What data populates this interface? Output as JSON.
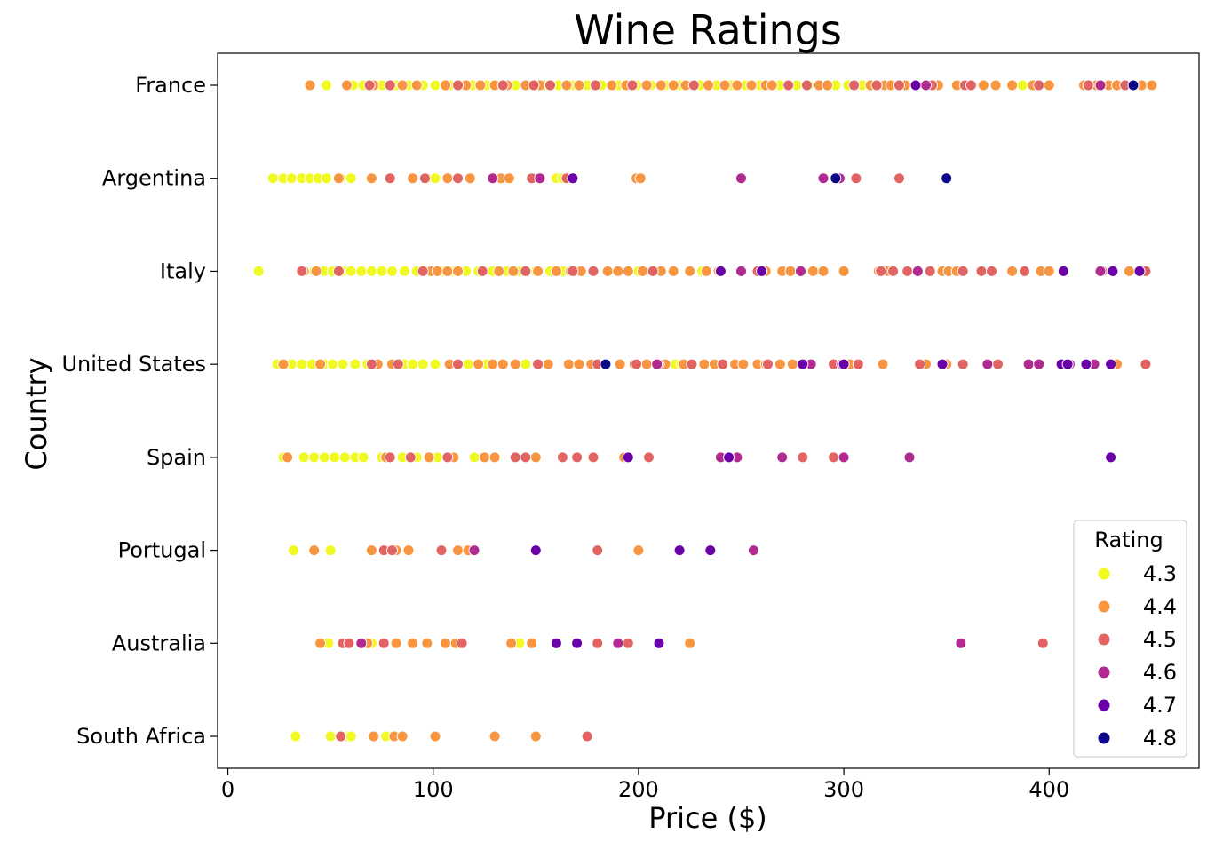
{
  "chart_data": {
    "type": "scatter",
    "title": "Wine Ratings",
    "xlabel": "Price ($)",
    "ylabel": "Country",
    "xlim": [
      -5,
      473
    ],
    "xticks": [
      0,
      100,
      200,
      300,
      400
    ],
    "categories": [
      "France",
      "Argentina",
      "Italy",
      "United States",
      "Spain",
      "Portugal",
      "Australia",
      "South Africa"
    ],
    "grid": false,
    "legend": {
      "title": "Rating",
      "placement": "bottom-right"
    },
    "series": [
      {
        "name": "4.3",
        "color": "#f0f921",
        "points": [
          [
            "France",
            [
              48,
              61,
              66,
              75,
              82,
              88,
              95,
              101,
              108,
              113,
              119,
              126,
              132,
              140,
              148,
              155,
              161,
              168,
              175,
              182,
              190,
              199,
              206,
              213,
              220,
              230,
              238,
              245,
              252,
              259,
              269,
              277,
              283,
              296,
              302,
              309,
              317,
              357,
              387,
              446
            ]
          ],
          [
            "Argentina",
            [
              22,
              27,
              31,
              36,
              40,
              44,
              48,
              55,
              60,
              97,
              101,
              160,
              163
            ]
          ],
          [
            "Italy",
            [
              15,
              42,
              47,
              51,
              56,
              60,
              65,
              70,
              75,
              80,
              86,
              92,
              98,
              104,
              110,
              116,
              122,
              129,
              136,
              142,
              150,
              157,
              163,
              200,
              231
            ]
          ],
          [
            "United States",
            [
              24,
              31,
              36,
              41,
              47,
              51,
              56,
              62,
              68,
              86,
              90,
              95,
              101,
              117,
              126,
              145,
              218,
              221
            ]
          ],
          [
            "Spain",
            [
              27,
              37,
              42,
              47,
              52,
              57,
              62,
              66,
              75,
              85,
              92,
              102,
              120
            ]
          ],
          [
            "Portugal",
            [
              32,
              50
            ]
          ],
          [
            "Australia",
            [
              49,
              56,
              58,
              70,
              142
            ]
          ],
          [
            "South Africa",
            [
              33,
              50,
              58,
              60,
              77
            ]
          ]
        ]
      },
      {
        "name": "4.4",
        "color": "#f89540",
        "points": [
          [
            "France",
            [
              40,
              58,
              71,
              85,
              92,
              106,
              116,
              123,
              130,
              136,
              145,
              152,
              165,
              171,
              187,
              194,
              204,
              211,
              217,
              223,
              234,
              242,
              248,
              255,
              262,
              265,
              288,
              292,
              313,
              320,
              323,
              330,
              340,
              346,
              355,
              368,
              374,
              382,
              392,
              400,
              417,
              423,
              429,
              433,
              445,
              450
            ]
          ],
          [
            "Argentina",
            [
              54,
              70,
              90,
              107,
              118,
              133,
              137,
              199,
              201
            ]
          ],
          [
            "Italy",
            [
              37,
              43,
              99,
              102,
              107,
              112,
              132,
              139,
              151,
              160,
              167,
              172,
              185,
              190,
              195,
              202,
              211,
              217,
              225,
              233,
              239,
              250,
              262,
              270,
              274,
              285,
              290,
              300,
              317,
              321,
              336,
              348,
              351,
              355,
              382,
              396,
              400,
              439
            ]
          ],
          [
            "United States",
            [
              27,
              45,
              73,
              80,
              108,
              122,
              129,
              134,
              140,
              156,
              166,
              171,
              177,
              191,
              198,
              204,
              213,
              222,
              232,
              237,
              247,
              251,
              258,
              262,
              269,
              275,
              300,
              303,
              319,
              340,
              350,
              433
            ]
          ],
          [
            "Spain",
            [
              29,
              77,
              98,
              110,
              125,
              130,
              150,
              193
            ]
          ],
          [
            "Portugal",
            [
              42,
              70,
              82,
              88,
              112,
              117,
              200
            ]
          ],
          [
            "Australia",
            [
              45,
              68,
              82,
              90,
              97,
              106,
              111,
              138,
              148,
              225
            ]
          ],
          [
            "South Africa",
            [
              55,
              71,
              81,
              85,
              101,
              130,
              150
            ]
          ]
        ]
      },
      {
        "name": "4.5",
        "color": "#e16462",
        "points": [
          [
            "France",
            [
              69,
              79,
              112,
              134,
              149,
              157,
              179,
              197,
              227,
              273,
              282,
              305,
              316,
              327,
              343,
              359,
              362,
              395,
              419,
              437
            ]
          ],
          [
            "Argentina",
            [
              79,
              96,
              112,
              148,
              165,
              306,
              327
            ]
          ],
          [
            "Italy",
            [
              36,
              54,
              95,
              124,
              145,
              168,
              178,
              207,
              240,
              258,
              279,
              318,
              324,
              331,
              342,
              358,
              367,
              372,
              388,
              426,
              447
            ]
          ],
          [
            "United States",
            [
              70,
              83,
              112,
              151,
              180,
              199,
              210,
              226,
              241,
              263,
              295,
              307,
              337,
              358,
              375,
              390,
              395,
              447
            ]
          ],
          [
            "Spain",
            [
              79,
              89,
              107,
              140,
              145,
              163,
              170,
              178,
              205,
              280,
              295
            ]
          ],
          [
            "Portugal",
            [
              76,
              80,
              104,
              180
            ]
          ],
          [
            "Australia",
            [
              56,
              59,
              76,
              114,
              180,
              195,
              397
            ]
          ],
          [
            "South Africa",
            [
              55,
              175
            ]
          ]
        ]
      },
      {
        "name": "4.6",
        "color": "#b12a90",
        "points": [
          [
            "France",
            [
              340,
              425
            ]
          ],
          [
            "Argentina",
            [
              129,
              152,
              250,
              290,
              298
            ]
          ],
          [
            "Italy",
            [
              250,
              279,
              336,
              425
            ]
          ],
          [
            "United States",
            [
              209,
              284,
              299,
              370,
              390,
              395,
              410,
              422
            ]
          ],
          [
            "Spain",
            [
              240,
              248,
              270,
              300,
              332
            ]
          ],
          [
            "Portugal",
            [
              120,
              256
            ]
          ],
          [
            "Australia",
            [
              65,
              190,
              357
            ]
          ],
          [
            "South Africa",
            []
          ]
        ]
      },
      {
        "name": "4.7",
        "color": "#6a00a8",
        "points": [
          [
            "France",
            [
              335,
              441
            ]
          ],
          [
            "Argentina",
            [
              168
            ]
          ],
          [
            "Italy",
            [
              240,
              260,
              407,
              431,
              444
            ]
          ],
          [
            "United States",
            [
              280,
              300,
              348,
              406,
              409,
              418,
              430
            ]
          ],
          [
            "Spain",
            [
              195,
              244,
              430
            ]
          ],
          [
            "Portugal",
            [
              150,
              220,
              235
            ]
          ],
          [
            "Australia",
            [
              160,
              170,
              210
            ]
          ],
          [
            "South Africa",
            []
          ]
        ]
      },
      {
        "name": "4.8",
        "color": "#0d0887",
        "points": [
          [
            "France",
            [
              441
            ]
          ],
          [
            "Argentina",
            [
              296,
              350
            ]
          ],
          [
            "Italy",
            []
          ],
          [
            "United States",
            [
              184
            ]
          ],
          [
            "Spain",
            []
          ],
          [
            "Portugal",
            []
          ],
          [
            "Australia",
            []
          ],
          [
            "South Africa",
            []
          ]
        ]
      }
    ]
  }
}
